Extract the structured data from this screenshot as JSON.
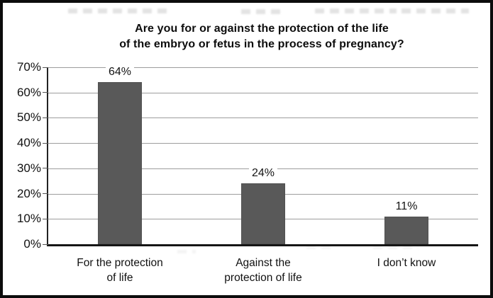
{
  "figure": {
    "background": "#ffffff",
    "border_color": "#0c0c0c"
  },
  "chart_data": {
    "type": "bar",
    "title": "Are you for or against the protection of the life of the embryo or fetus in the process of pregnancy?",
    "title_lines": [
      "Are you for or against the protection of the life",
      "of the embryo or fetus in the process of pregnancy?"
    ],
    "categories": [
      "For the protection of life",
      "Against the protection of life",
      "I don’t know"
    ],
    "category_label_lines": [
      [
        "For the protection",
        "of life"
      ],
      [
        "Against the",
        "protection of life"
      ],
      [
        "I don’t know"
      ]
    ],
    "values": [
      64,
      24,
      11
    ],
    "value_labels": [
      "64%",
      "24%",
      "11%"
    ],
    "xlabel": "",
    "ylabel": "",
    "ylim": [
      0,
      70
    ],
    "ytick_step": 10,
    "ytick_labels": [
      "70%",
      "60%",
      "50%",
      "40%",
      "30%",
      "20%",
      "10%",
      "0%"
    ],
    "grid": true,
    "legend": false,
    "colors": {
      "bar": "#595959",
      "gridline": "#9d9d9d",
      "axis": "#222222",
      "text": "#111111"
    }
  }
}
